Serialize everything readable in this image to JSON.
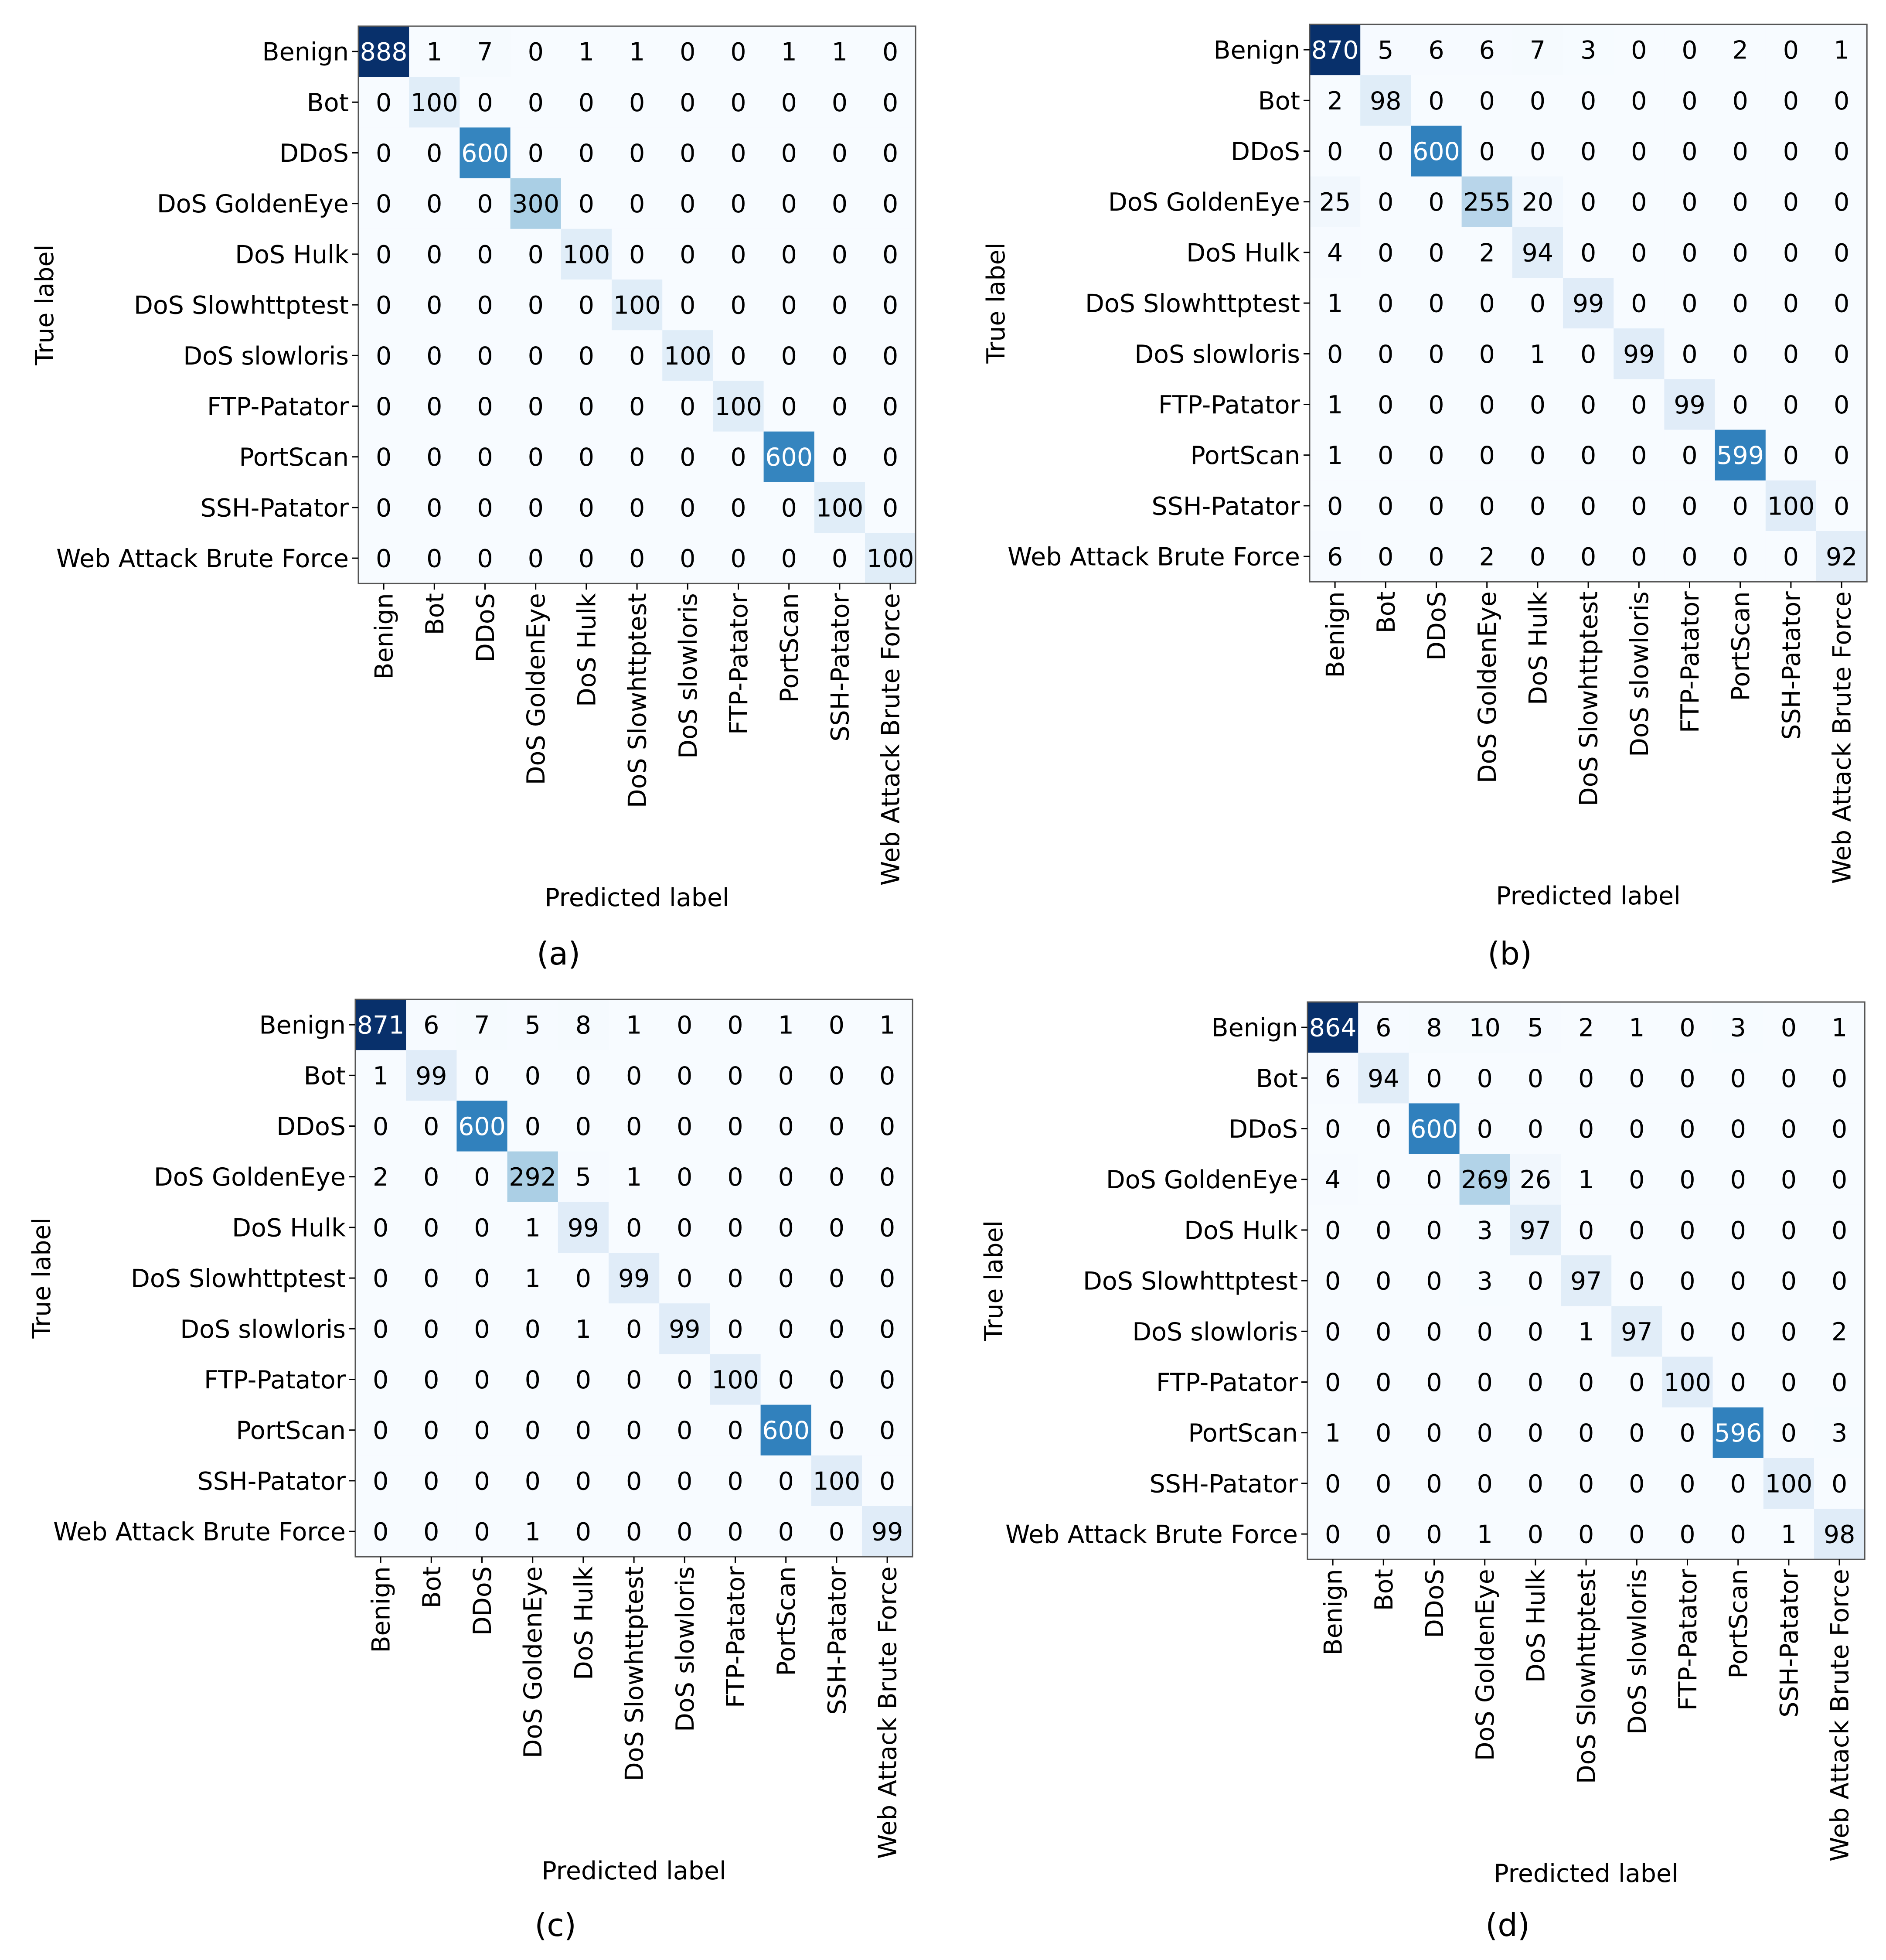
{
  "chart_data": [
    {
      "type": "heatmap",
      "panel_label": "(a)",
      "xlabel": "Predicted label",
      "ylabel": "True label",
      "categories": [
        "Benign",
        "Bot",
        "DDoS",
        "DoS GoldenEye",
        "DoS Hulk",
        "DoS Slowhttptest",
        "DoS slowloris",
        "FTP-Patator",
        "PortScan",
        "SSH-Patator",
        "Web Attack Brute Force"
      ],
      "matrix": [
        [
          888,
          1,
          7,
          0,
          1,
          1,
          0,
          0,
          1,
          1,
          0
        ],
        [
          0,
          100,
          0,
          0,
          0,
          0,
          0,
          0,
          0,
          0,
          0
        ],
        [
          0,
          0,
          600,
          0,
          0,
          0,
          0,
          0,
          0,
          0,
          0
        ],
        [
          0,
          0,
          0,
          300,
          0,
          0,
          0,
          0,
          0,
          0,
          0
        ],
        [
          0,
          0,
          0,
          0,
          100,
          0,
          0,
          0,
          0,
          0,
          0
        ],
        [
          0,
          0,
          0,
          0,
          0,
          100,
          0,
          0,
          0,
          0,
          0
        ],
        [
          0,
          0,
          0,
          0,
          0,
          0,
          100,
          0,
          0,
          0,
          0
        ],
        [
          0,
          0,
          0,
          0,
          0,
          0,
          0,
          100,
          0,
          0,
          0
        ],
        [
          0,
          0,
          0,
          0,
          0,
          0,
          0,
          0,
          600,
          0,
          0
        ],
        [
          0,
          0,
          0,
          0,
          0,
          0,
          0,
          0,
          0,
          100,
          0
        ],
        [
          0,
          0,
          0,
          0,
          0,
          0,
          0,
          0,
          0,
          0,
          100
        ]
      ]
    },
    {
      "type": "heatmap",
      "panel_label": "(b)",
      "xlabel": "Predicted label",
      "ylabel": "True label",
      "categories": [
        "Benign",
        "Bot",
        "DDoS",
        "DoS GoldenEye",
        "DoS Hulk",
        "DoS Slowhttptest",
        "DoS slowloris",
        "FTP-Patator",
        "PortScan",
        "SSH-Patator",
        "Web Attack Brute Force"
      ],
      "matrix": [
        [
          870,
          5,
          6,
          6,
          7,
          3,
          0,
          0,
          2,
          0,
          1
        ],
        [
          2,
          98,
          0,
          0,
          0,
          0,
          0,
          0,
          0,
          0,
          0
        ],
        [
          0,
          0,
          600,
          0,
          0,
          0,
          0,
          0,
          0,
          0,
          0
        ],
        [
          25,
          0,
          0,
          255,
          20,
          0,
          0,
          0,
          0,
          0,
          0
        ],
        [
          4,
          0,
          0,
          2,
          94,
          0,
          0,
          0,
          0,
          0,
          0
        ],
        [
          1,
          0,
          0,
          0,
          0,
          99,
          0,
          0,
          0,
          0,
          0
        ],
        [
          0,
          0,
          0,
          0,
          1,
          0,
          99,
          0,
          0,
          0,
          0
        ],
        [
          1,
          0,
          0,
          0,
          0,
          0,
          0,
          99,
          0,
          0,
          0
        ],
        [
          1,
          0,
          0,
          0,
          0,
          0,
          0,
          0,
          599,
          0,
          0
        ],
        [
          0,
          0,
          0,
          0,
          0,
          0,
          0,
          0,
          0,
          100,
          0
        ],
        [
          6,
          0,
          0,
          2,
          0,
          0,
          0,
          0,
          0,
          0,
          92
        ]
      ]
    },
    {
      "type": "heatmap",
      "panel_label": "(c)",
      "xlabel": "Predicted label",
      "ylabel": "True label",
      "categories": [
        "Benign",
        "Bot",
        "DDoS",
        "DoS GoldenEye",
        "DoS Hulk",
        "DoS Slowhttptest",
        "DoS slowloris",
        "FTP-Patator",
        "PortScan",
        "SSH-Patator",
        "Web Attack Brute Force"
      ],
      "matrix": [
        [
          871,
          6,
          7,
          5,
          8,
          1,
          0,
          0,
          1,
          0,
          1
        ],
        [
          1,
          99,
          0,
          0,
          0,
          0,
          0,
          0,
          0,
          0,
          0
        ],
        [
          0,
          0,
          600,
          0,
          0,
          0,
          0,
          0,
          0,
          0,
          0
        ],
        [
          2,
          0,
          0,
          292,
          5,
          1,
          0,
          0,
          0,
          0,
          0
        ],
        [
          0,
          0,
          0,
          1,
          99,
          0,
          0,
          0,
          0,
          0,
          0
        ],
        [
          0,
          0,
          0,
          1,
          0,
          99,
          0,
          0,
          0,
          0,
          0
        ],
        [
          0,
          0,
          0,
          0,
          1,
          0,
          99,
          0,
          0,
          0,
          0
        ],
        [
          0,
          0,
          0,
          0,
          0,
          0,
          0,
          100,
          0,
          0,
          0
        ],
        [
          0,
          0,
          0,
          0,
          0,
          0,
          0,
          0,
          600,
          0,
          0
        ],
        [
          0,
          0,
          0,
          0,
          0,
          0,
          0,
          0,
          0,
          100,
          0
        ],
        [
          0,
          0,
          0,
          1,
          0,
          0,
          0,
          0,
          0,
          0,
          99
        ]
      ]
    },
    {
      "type": "heatmap",
      "panel_label": "(d)",
      "xlabel": "Predicted label",
      "ylabel": "True label",
      "categories": [
        "Benign",
        "Bot",
        "DDoS",
        "DoS GoldenEye",
        "DoS Hulk",
        "DoS Slowhttptest",
        "DoS slowloris",
        "FTP-Patator",
        "PortScan",
        "SSH-Patator",
        "Web Attack Brute Force"
      ],
      "matrix": [
        [
          864,
          6,
          8,
          10,
          5,
          2,
          1,
          0,
          3,
          0,
          1
        ],
        [
          6,
          94,
          0,
          0,
          0,
          0,
          0,
          0,
          0,
          0,
          0
        ],
        [
          0,
          0,
          600,
          0,
          0,
          0,
          0,
          0,
          0,
          0,
          0
        ],
        [
          4,
          0,
          0,
          269,
          26,
          1,
          0,
          0,
          0,
          0,
          0
        ],
        [
          0,
          0,
          0,
          3,
          97,
          0,
          0,
          0,
          0,
          0,
          0
        ],
        [
          0,
          0,
          0,
          3,
          0,
          97,
          0,
          0,
          0,
          0,
          0
        ],
        [
          0,
          0,
          0,
          0,
          0,
          1,
          97,
          0,
          0,
          0,
          2
        ],
        [
          0,
          0,
          0,
          0,
          0,
          0,
          0,
          100,
          0,
          0,
          0
        ],
        [
          1,
          0,
          0,
          0,
          0,
          0,
          0,
          0,
          596,
          0,
          3
        ],
        [
          0,
          0,
          0,
          0,
          0,
          0,
          0,
          0,
          0,
          100,
          0
        ],
        [
          0,
          0,
          0,
          1,
          0,
          0,
          0,
          0,
          0,
          1,
          98
        ]
      ]
    }
  ]
}
